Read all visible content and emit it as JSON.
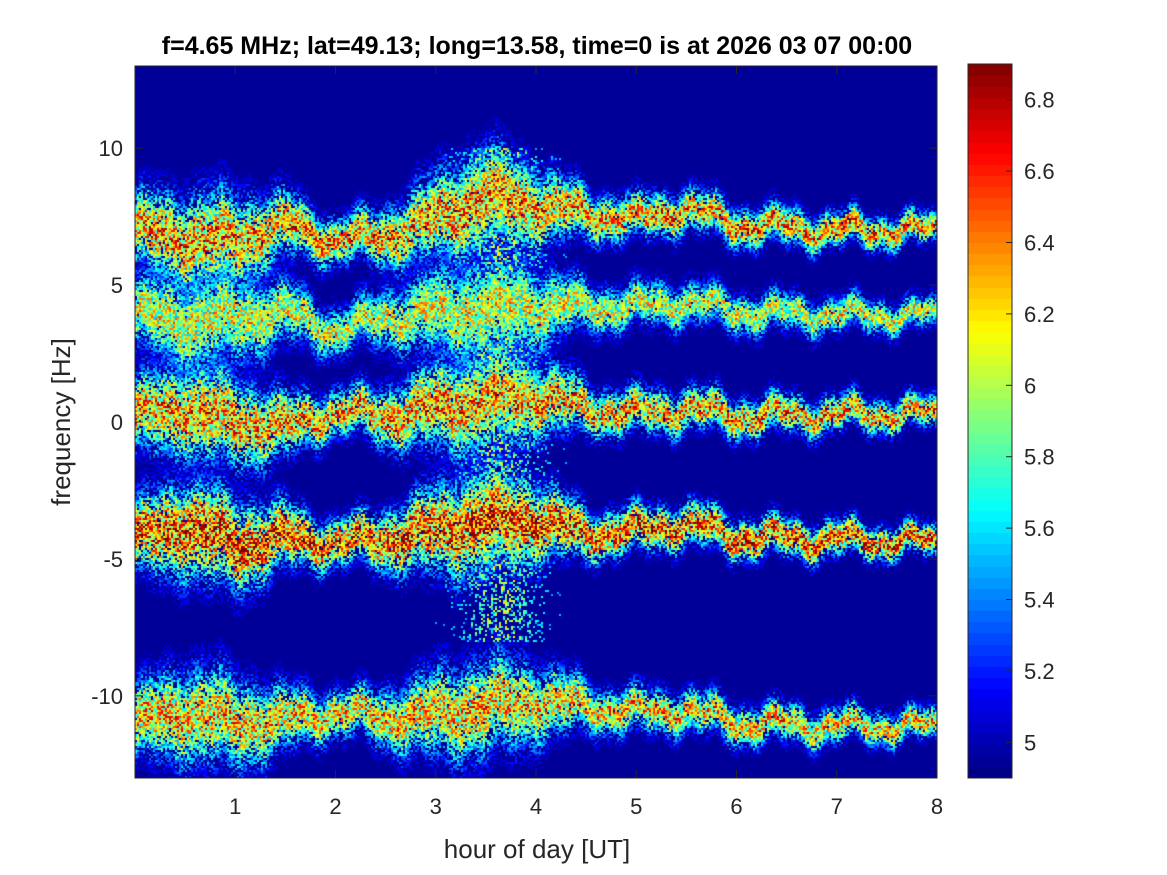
{
  "chart_data": {
    "type": "heatmap",
    "title": "f=4.65 MHz;  lat=49.13; long=13.58, time=0 is at 2026 03 07 00:00",
    "xlabel": "hour of day [UT]",
    "ylabel": "frequency [Hz]",
    "xlim": [
      0,
      8
    ],
    "ylim": [
      -13,
      13
    ],
    "x_ticks": [
      1,
      2,
      3,
      4,
      5,
      6,
      7,
      8
    ],
    "x_tick_labels": [
      "1",
      "2",
      "3",
      "4",
      "5",
      "6",
      "7",
      "8"
    ],
    "y_ticks": [
      10,
      5,
      0,
      -5,
      -10
    ],
    "y_tick_labels": [
      "10",
      "5",
      "0",
      "-5",
      "-10"
    ],
    "colormap": "jet",
    "colorbar": {
      "range": [
        4.9,
        6.9
      ],
      "ticks": [
        6.8,
        6.6,
        6.4,
        6.2,
        6,
        5.8,
        5.6,
        5.4,
        5.2,
        5
      ],
      "tick_labels": [
        "6.8",
        "6.6",
        "6.4",
        "6.2",
        "6",
        "5.8",
        "5.6",
        "5.4",
        "5.2",
        "5"
      ]
    },
    "background_value": 4.95,
    "traces": [
      {
        "name": "",
        "center": [
          [
            0,
            7.0
          ],
          [
            0.5,
            6.6
          ],
          [
            1.0,
            6.6
          ],
          [
            1.5,
            7.2
          ],
          [
            2.0,
            6.6
          ],
          [
            2.5,
            6.8
          ],
          [
            3.0,
            7.4
          ],
          [
            3.5,
            8.2
          ],
          [
            4.0,
            7.9
          ],
          [
            4.5,
            7.6
          ],
          [
            5.0,
            7.4
          ],
          [
            5.5,
            7.8
          ],
          [
            6.0,
            7.2
          ],
          [
            7.0,
            7.0
          ],
          [
            8.0,
            7.0
          ]
        ],
        "peak": 6.6
      },
      {
        "name": "",
        "center": [
          [
            0,
            4.0
          ],
          [
            0.5,
            3.6
          ],
          [
            1.0,
            3.8
          ],
          [
            1.5,
            4.0
          ],
          [
            2.0,
            3.3
          ],
          [
            2.5,
            3.8
          ],
          [
            3.0,
            4.0
          ],
          [
            3.5,
            4.1
          ],
          [
            4.0,
            4.2
          ],
          [
            4.5,
            4.2
          ],
          [
            5.0,
            4.2
          ],
          [
            5.5,
            4.4
          ],
          [
            6.0,
            4.0
          ],
          [
            7.0,
            3.9
          ],
          [
            8.0,
            3.9
          ]
        ],
        "peak": 6.3
      },
      {
        "name": "",
        "center": [
          [
            0,
            0.2
          ],
          [
            0.5,
            0.5
          ],
          [
            1.0,
            0.0
          ],
          [
            1.5,
            -0.2
          ],
          [
            2.0,
            0.4
          ],
          [
            2.5,
            0.2
          ],
          [
            3.0,
            0.5
          ],
          [
            3.5,
            0.8
          ],
          [
            4.0,
            0.9
          ],
          [
            4.5,
            0.5
          ],
          [
            5.0,
            0.3
          ],
          [
            5.5,
            0.5
          ],
          [
            6.0,
            0.2
          ],
          [
            7.0,
            0.3
          ],
          [
            8.0,
            0.3
          ]
        ],
        "peak": 6.6
      },
      {
        "name": "",
        "center": [
          [
            0,
            -4.3
          ],
          [
            0.5,
            -3.8
          ],
          [
            1.0,
            -4.5
          ],
          [
            1.5,
            -4.2
          ],
          [
            2.0,
            -4.4
          ],
          [
            2.5,
            -4.3
          ],
          [
            3.0,
            -4.0
          ],
          [
            3.5,
            -3.6
          ],
          [
            4.0,
            -3.6
          ],
          [
            4.5,
            -4.1
          ],
          [
            5.0,
            -4.0
          ],
          [
            5.5,
            -3.7
          ],
          [
            6.0,
            -4.2
          ],
          [
            7.0,
            -4.3
          ],
          [
            8.0,
            -4.4
          ]
        ],
        "peak": 6.8
      },
      {
        "name": "",
        "center": [
          [
            0,
            -11.0
          ],
          [
            0.5,
            -10.6
          ],
          [
            1.0,
            -11.0
          ],
          [
            1.5,
            -10.9
          ],
          [
            2.0,
            -10.6
          ],
          [
            2.5,
            -10.8
          ],
          [
            3.0,
            -10.7
          ],
          [
            3.5,
            -10.4
          ],
          [
            4.0,
            -10.2
          ],
          [
            4.5,
            -10.4
          ],
          [
            5.0,
            -10.6
          ],
          [
            5.5,
            -10.5
          ],
          [
            6.0,
            -11.0
          ],
          [
            7.0,
            -11.1
          ],
          [
            8.0,
            -11.1
          ]
        ],
        "peak": 6.5
      }
    ],
    "spread_event": {
      "x_start": 3.0,
      "x_end": 4.3,
      "y_low": -8.0,
      "y_high": 10.0
    }
  }
}
